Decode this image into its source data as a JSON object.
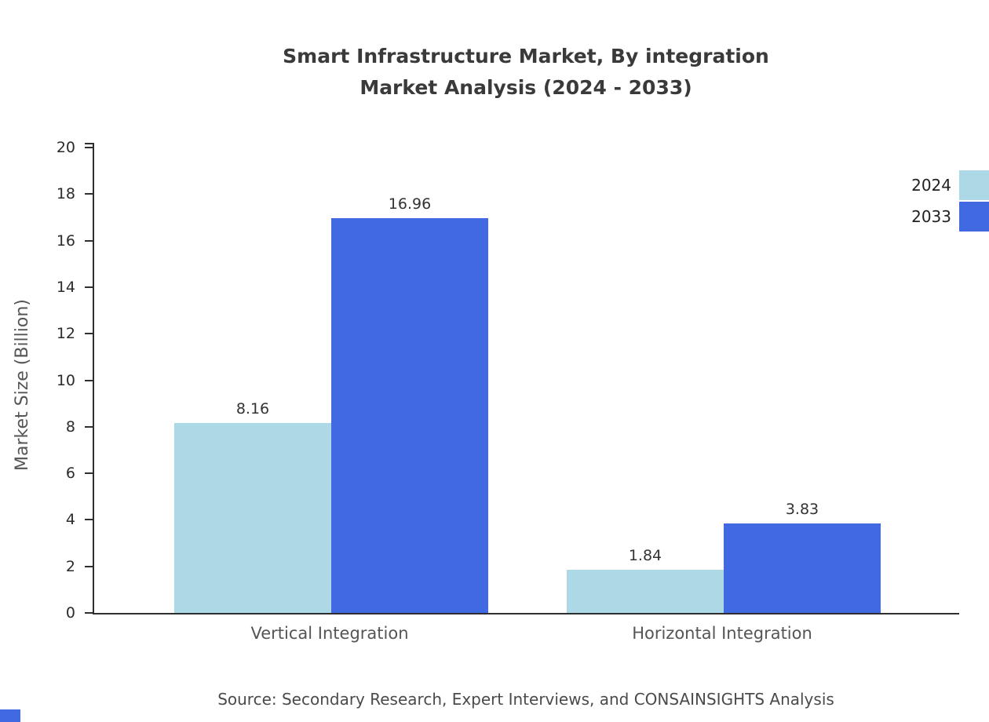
{
  "title": {
    "line1": "Smart Infrastructure Market, By integration",
    "line2": "Market Analysis (2024 - 2033)"
  },
  "y_axis": {
    "label": "Market Size (Billion)"
  },
  "legend": [
    {
      "label": "2024",
      "color": "#ADD8E6"
    },
    {
      "label": "2033",
      "color": "#4169E1"
    }
  ],
  "source": "Source: Secondary Research, Expert Interviews, and CONSAINSIGHTS Analysis",
  "chart_data": {
    "type": "bar",
    "title": "Smart Infrastructure Market, By integration Market Analysis (2024 - 2033)",
    "categories": [
      "Vertical Integration",
      "Horizontal Integration"
    ],
    "series": [
      {
        "name": "2024",
        "color": "#ADD8E6",
        "values": [
          8.16,
          1.84
        ]
      },
      {
        "name": "2033",
        "color": "#4169E1",
        "values": [
          16.96,
          3.83
        ]
      }
    ],
    "xlabel": "",
    "ylabel": "Market Size (Billion)",
    "ylim": [
      0,
      20
    ],
    "ytick_step": 2,
    "grid": false,
    "legend_position": "top-right",
    "value_labels": true
  }
}
